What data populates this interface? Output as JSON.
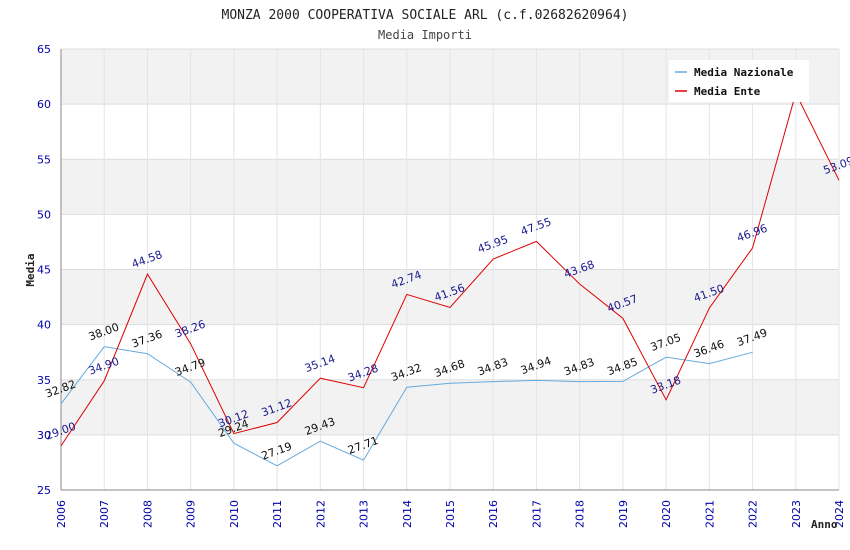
{
  "chart_data": {
    "type": "line",
    "title": "MONZA 2000 COOPERATIVA SOCIALE ARL (c.f.02682620964)",
    "subtitle": "Media Importi",
    "xlabel": "Anno",
    "ylabel": "Media",
    "ylim": [
      25,
      65
    ],
    "yticks": [
      25,
      30,
      35,
      40,
      45,
      50,
      55,
      60,
      65
    ],
    "grid": true,
    "legend_position": "top-right",
    "categories": [
      "2006",
      "2007",
      "2008",
      "2009",
      "2010",
      "2011",
      "2012",
      "2013",
      "2014",
      "2015",
      "2016",
      "2017",
      "2018",
      "2019",
      "2020",
      "2021",
      "2022",
      "2023",
      "2024"
    ],
    "series": [
      {
        "name": "Media Nazionale",
        "color": "#66aadd",
        "label_color": "#111111",
        "values": [
          32.82,
          38.0,
          37.36,
          34.79,
          29.24,
          27.19,
          29.43,
          27.71,
          34.32,
          34.68,
          34.83,
          34.94,
          34.83,
          34.85,
          37.05,
          36.46,
          37.49,
          null,
          null
        ],
        "labels": [
          "32.82",
          "38.00",
          "37.36",
          "34.79",
          "29.24",
          "27.19",
          "29.43",
          "27.71",
          "34.32",
          "34.68",
          "34.83",
          "34.94",
          "34.83",
          "34.85",
          "37.05",
          "36.46",
          "37.49",
          null,
          null
        ]
      },
      {
        "name": "Media Ente",
        "color": "#dd0000",
        "label_color": "#1a1a8c",
        "values": [
          29.0,
          34.9,
          44.58,
          38.26,
          30.12,
          31.12,
          35.14,
          34.28,
          42.74,
          41.56,
          45.95,
          47.55,
          43.68,
          40.57,
          33.18,
          41.5,
          46.96,
          61.0,
          53.09
        ],
        "labels": [
          "29.00",
          "34.90",
          "44.58",
          "38.26",
          "30.12",
          "31.12",
          "35.14",
          "34.28",
          "42.74",
          "41.56",
          "45.95",
          "47.55",
          "43.68",
          "40.57",
          "33.18",
          "41.50",
          "46.96",
          null,
          "53.09"
        ]
      }
    ]
  }
}
